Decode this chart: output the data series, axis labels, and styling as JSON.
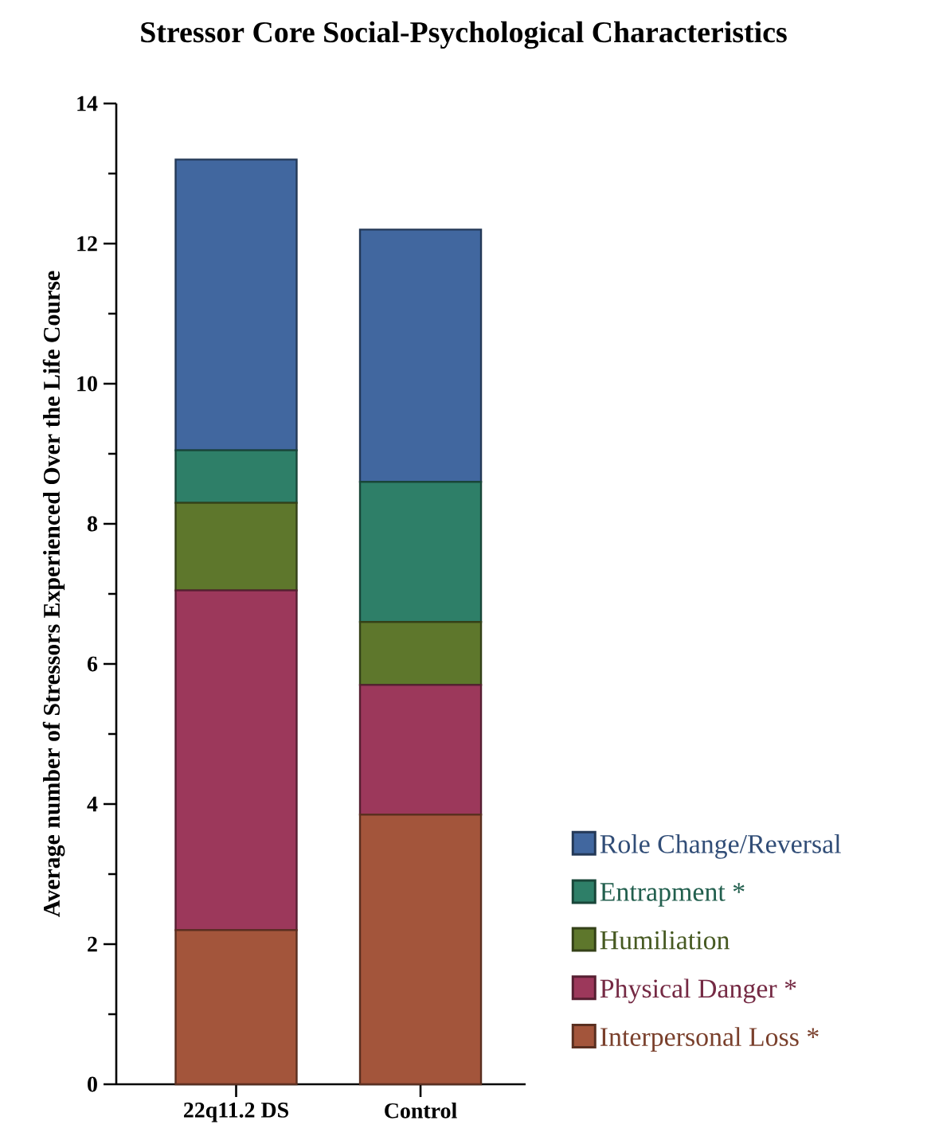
{
  "chart_data": {
    "type": "bar",
    "stacked": true,
    "title": "Stressor Core Social-Psychological Characteristics",
    "ylabel": "Average number of Stressors Experienced Over the Life Course",
    "categories": [
      "22q11.2 DS",
      "Control"
    ],
    "series": [
      {
        "name": "Interpersonal Loss *",
        "color": "#a3553b",
        "values": [
          2.2,
          3.85
        ]
      },
      {
        "name": "Physical Danger *",
        "color": "#9c385b",
        "values": [
          4.85,
          1.85
        ]
      },
      {
        "name": "Humiliation",
        "color": "#5e772c",
        "values": [
          1.25,
          0.9
        ]
      },
      {
        "name": "Entrapment *",
        "color": "#2e7f68",
        "values": [
          0.75,
          2.0
        ]
      },
      {
        "name": "Role Change/Reversal",
        "color": "#41679f",
        "values": [
          4.15,
          3.6
        ]
      }
    ],
    "ylim": [
      0,
      14
    ],
    "yticks": [
      0,
      {
        "value": 1,
        "label": null
      },
      2,
      {
        "value": 3,
        "label": null
      },
      4,
      {
        "value": 5,
        "label": null
      },
      6,
      {
        "value": 7,
        "label": null
      },
      8,
      {
        "value": 9,
        "label": null
      },
      10,
      {
        "value": 11,
        "label": null
      },
      12,
      {
        "value": 13,
        "label": null
      },
      14
    ],
    "legend": "bottom right"
  }
}
